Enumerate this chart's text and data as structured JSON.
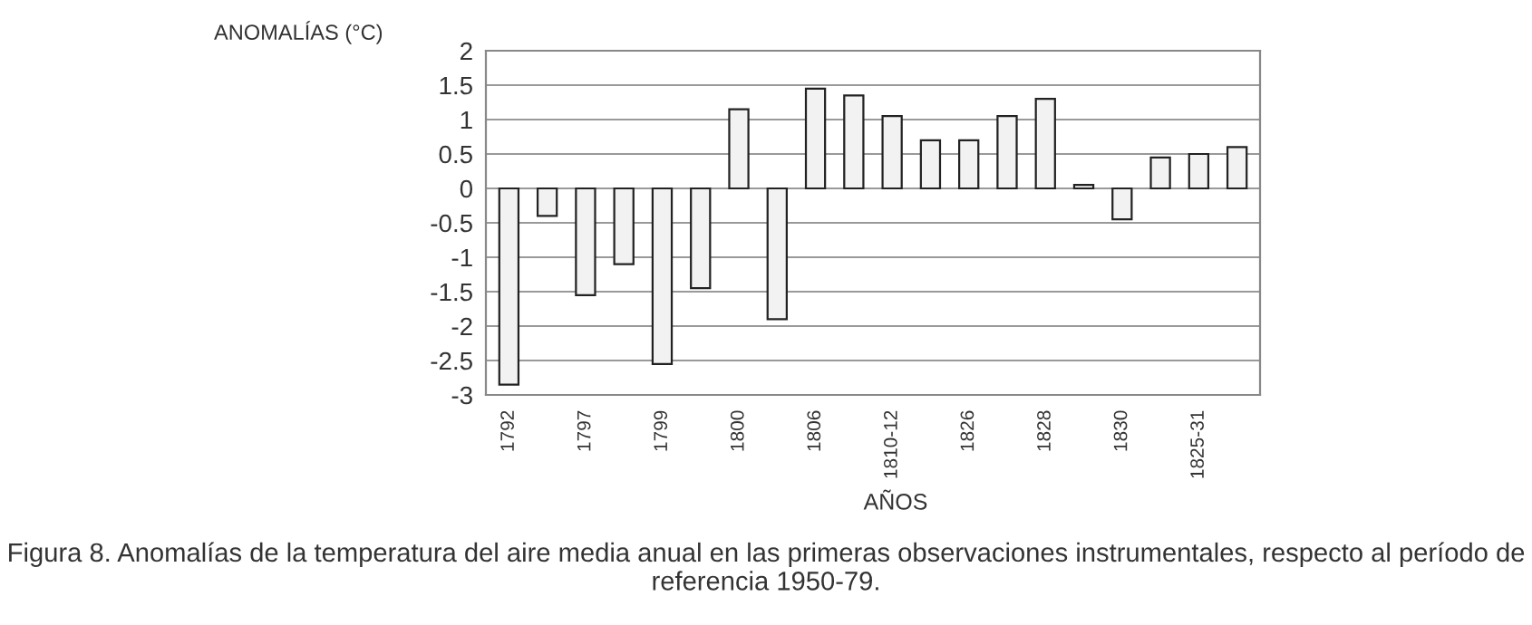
{
  "chart_data": {
    "type": "bar",
    "ylabel": "ANOMALÍAS (°C)",
    "xlabel": "AÑOS",
    "annotations": [
      "Figura 8. Anomalías de la temperatura del aire media anual en las primeras observaciones instrumentales, respecto al período de referencia 1950-79."
    ],
    "categories": [
      "1792",
      null,
      "1797",
      null,
      "1799",
      null,
      "1800",
      null,
      "1806",
      null,
      "1810-12",
      null,
      "1826",
      null,
      "1828",
      null,
      "1830",
      null,
      "1825-31",
      null
    ],
    "values": [
      -2.85,
      -0.4,
      -1.55,
      -1.1,
      -2.55,
      -1.45,
      1.15,
      -1.9,
      1.45,
      1.35,
      1.05,
      0.7,
      0.7,
      1.05,
      1.3,
      0.05,
      -0.45,
      0.45,
      0.5,
      0.6
    ],
    "color": "#f2f2f2",
    "ylim": [
      -3,
      2
    ],
    "yticks": [
      -3,
      -2.5,
      -2,
      -1.5,
      -1,
      -0.5,
      0,
      0.5,
      1,
      1.5,
      2
    ],
    "grid": "y"
  }
}
